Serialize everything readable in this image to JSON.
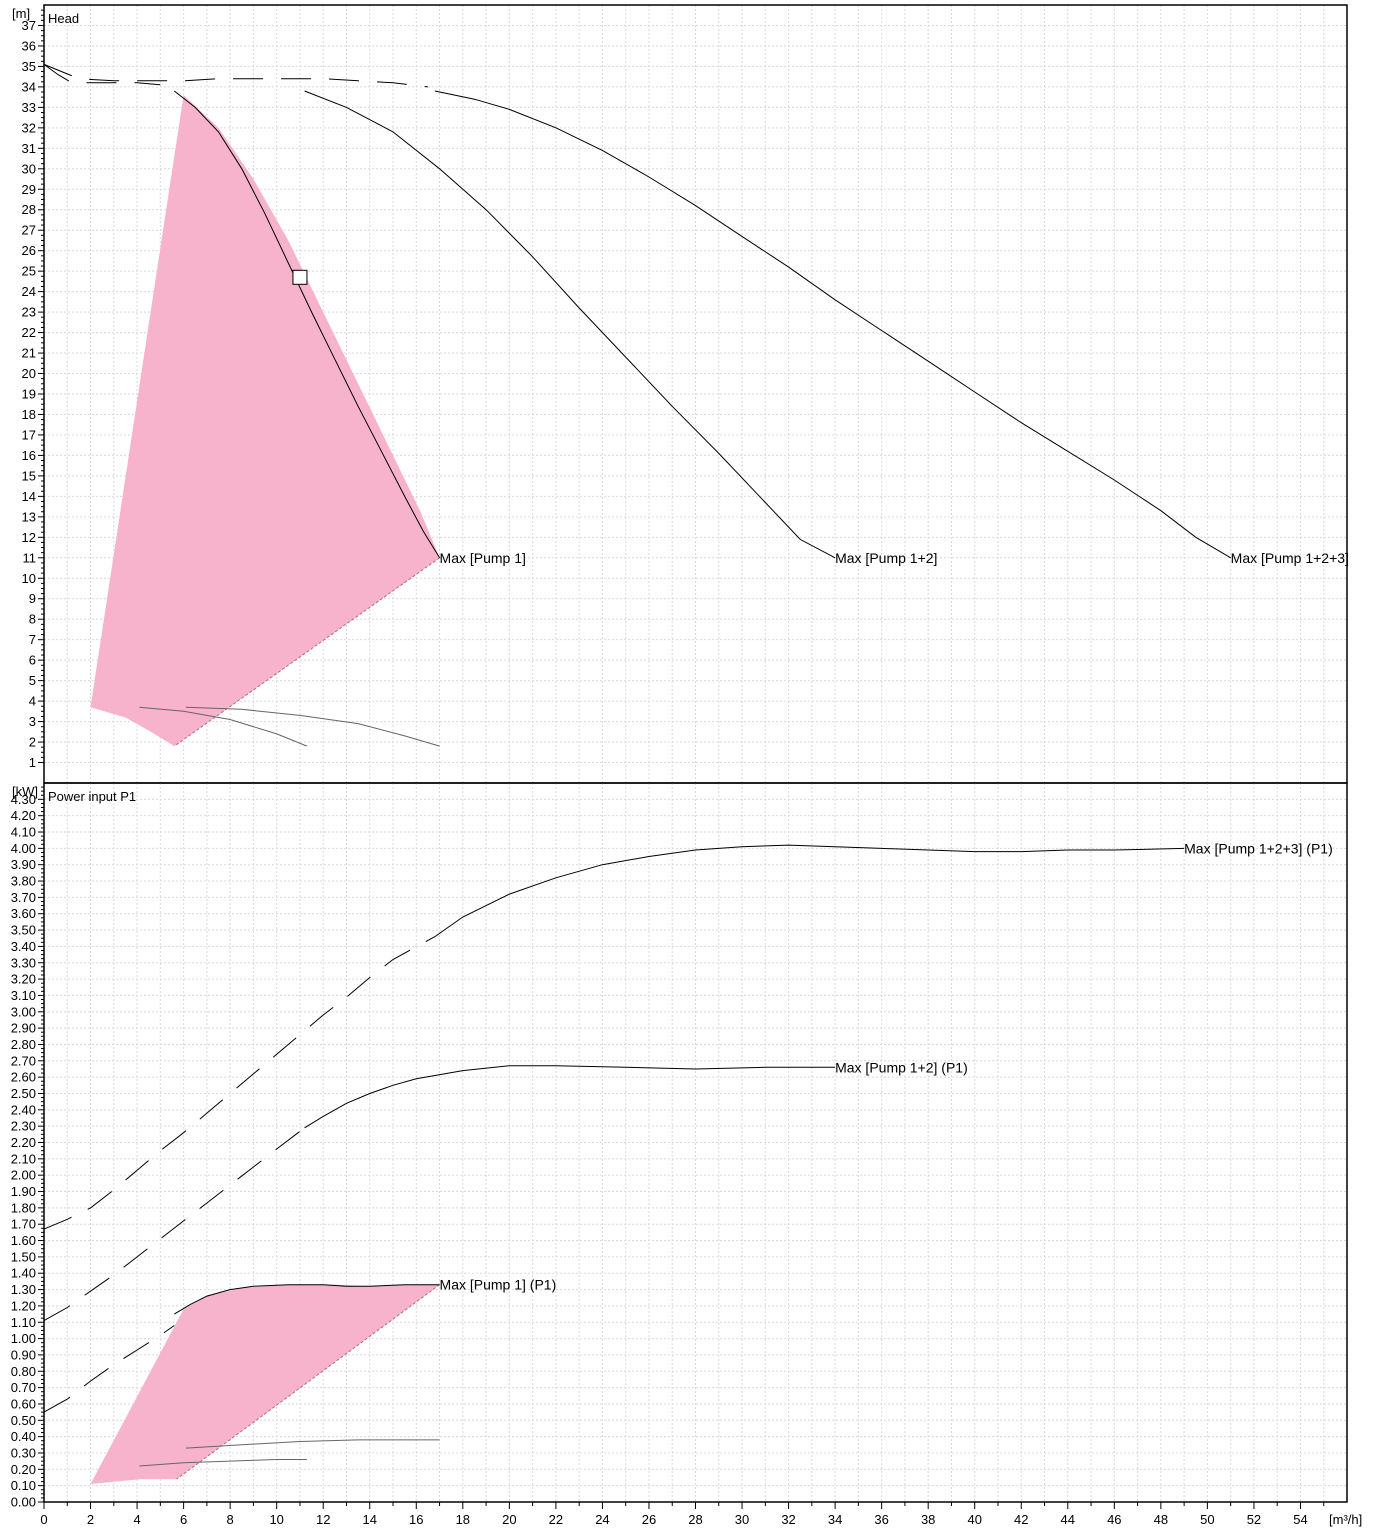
{
  "chart_data": [
    {
      "type": "line",
      "title": "Head",
      "ylabel": "[m]",
      "xlim": [
        0,
        56
      ],
      "ylim": [
        0,
        38
      ],
      "x_ticks": [
        0,
        2,
        4,
        6,
        8,
        10,
        12,
        14,
        16,
        18,
        20,
        22,
        24,
        26,
        28,
        30,
        32,
        34,
        36,
        38,
        40,
        42,
        44,
        46,
        48,
        50,
        52,
        54
      ],
      "y_ticks": [
        1,
        2,
        3,
        4,
        5,
        6,
        7,
        8,
        9,
        10,
        11,
        12,
        13,
        14,
        15,
        16,
        17,
        18,
        19,
        20,
        21,
        22,
        23,
        24,
        25,
        26,
        27,
        28,
        29,
        30,
        31,
        32,
        33,
        34,
        35,
        36,
        37
      ],
      "grid": true,
      "operating_area_color": "#f7b3cc",
      "operating_area": [
        [
          6.0,
          33.6
        ],
        [
          7.5,
          32.0
        ],
        [
          9.0,
          29.5
        ],
        [
          10.5,
          26.5
        ],
        [
          12.0,
          23.0
        ],
        [
          13.5,
          19.5
        ],
        [
          15.0,
          16.0
        ],
        [
          16.2,
          13.2
        ],
        [
          17.0,
          11.0
        ],
        [
          5.6,
          1.8
        ],
        [
          4.6,
          2.5
        ],
        [
          3.5,
          3.2
        ],
        [
          2.0,
          3.7
        ]
      ],
      "operating_point": {
        "x": 11.0,
        "y": 24.7
      },
      "series": [
        {
          "name": "Max [Pump 1]",
          "label_at": [
            17.0,
            11.0
          ],
          "style": "solid",
          "points": [
            [
              5.6,
              33.8
            ],
            [
              6.5,
              33.0
            ],
            [
              7.5,
              31.8
            ],
            [
              8.5,
              30.0
            ],
            [
              9.5,
              27.8
            ],
            [
              10.5,
              25.4
            ],
            [
              11.5,
              23.0
            ],
            [
              12.5,
              20.7
            ],
            [
              13.5,
              18.4
            ],
            [
              14.5,
              16.2
            ],
            [
              15.5,
              14.0
            ],
            [
              16.3,
              12.3
            ],
            [
              17.0,
              11.0
            ]
          ]
        },
        {
          "name": "Max [Pump 1+2]",
          "label_at": [
            34.0,
            11.0
          ],
          "style": "solid",
          "points": [
            [
              11.2,
              33.8
            ],
            [
              13.0,
              33.0
            ],
            [
              15.0,
              31.8
            ],
            [
              17.0,
              30.0
            ],
            [
              19.0,
              28.0
            ],
            [
              21.0,
              25.7
            ],
            [
              23.0,
              23.2
            ],
            [
              25.0,
              20.8
            ],
            [
              27.0,
              18.4
            ],
            [
              29.0,
              16.1
            ],
            [
              31.0,
              13.7
            ],
            [
              32.5,
              11.9
            ],
            [
              34.0,
              11.0
            ]
          ]
        },
        {
          "name": "Max [Pump 1+2+3]",
          "label_at": [
            51.0,
            11.0
          ],
          "style": "solid",
          "points": [
            [
              16.8,
              33.8
            ],
            [
              18.5,
              33.4
            ],
            [
              20.0,
              32.9
            ],
            [
              22.0,
              32.0
            ],
            [
              24.0,
              30.9
            ],
            [
              26.0,
              29.6
            ],
            [
              28.0,
              28.2
            ],
            [
              30.0,
              26.7
            ],
            [
              32.0,
              25.2
            ],
            [
              34.0,
              23.6
            ],
            [
              36.0,
              22.1
            ],
            [
              38.0,
              20.6
            ],
            [
              40.0,
              19.1
            ],
            [
              42.0,
              17.6
            ],
            [
              44.0,
              16.2
            ],
            [
              46.0,
              14.8
            ],
            [
              48.0,
              13.3
            ],
            [
              49.5,
              12.0
            ],
            [
              51.0,
              11.0
            ]
          ]
        },
        {
          "name": "",
          "style": "dash",
          "points": [
            [
              0,
              35.1
            ],
            [
              1.5,
              34.4
            ],
            [
              3.0,
              34.3
            ],
            [
              4.5,
              34.3
            ],
            [
              6.0,
              34.3
            ],
            [
              7.5,
              34.4
            ],
            [
              9.0,
              34.4
            ],
            [
              10.5,
              34.4
            ],
            [
              12.0,
              34.4
            ],
            [
              13.5,
              34.3
            ],
            [
              15.0,
              34.2
            ],
            [
              16.5,
              34.0
            ]
          ]
        },
        {
          "name": "",
          "style": "dash",
          "points": [
            [
              0,
              35.1
            ],
            [
              0.6,
              34.6
            ],
            [
              1.2,
              34.2
            ],
            [
              2.0,
              34.2
            ],
            [
              3.0,
              34.2
            ],
            [
              4.0,
              34.2
            ],
            [
              5.0,
              34.1
            ]
          ]
        },
        {
          "name": "",
          "style": "min",
          "points": [
            [
              4.1,
              3.7
            ],
            [
              6.0,
              3.5
            ],
            [
              8.0,
              3.1
            ],
            [
              10.0,
              2.4
            ],
            [
              11.3,
              1.8
            ]
          ]
        },
        {
          "name": "",
          "style": "min",
          "points": [
            [
              6.1,
              3.7
            ],
            [
              8.5,
              3.6
            ],
            [
              11.0,
              3.3
            ],
            [
              13.5,
              2.9
            ],
            [
              15.5,
              2.3
            ],
            [
              17.0,
              1.8
            ]
          ]
        }
      ],
      "labels": [
        "Max [Pump 1]",
        "Max [Pump 1+2]",
        "Max [Pump 1+2+3]"
      ]
    },
    {
      "type": "line",
      "title": "Power input P1",
      "ylabel": "[kW]",
      "xlabel": "[m³/h]",
      "xlim": [
        0,
        56
      ],
      "ylim": [
        0,
        4.4
      ],
      "x_ticks": [
        0,
        2,
        4,
        6,
        8,
        10,
        12,
        14,
        16,
        18,
        20,
        22,
        24,
        26,
        28,
        30,
        32,
        34,
        36,
        38,
        40,
        42,
        44,
        46,
        48,
        50,
        52,
        54
      ],
      "y_ticks": [
        "0.00",
        "0.10",
        "0.20",
        "0.30",
        "0.40",
        "0.50",
        "0.60",
        "0.70",
        "0.80",
        "0.90",
        "1.00",
        "1.10",
        "1.20",
        "1.30",
        "1.40",
        "1.50",
        "1.60",
        "1.70",
        "1.80",
        "1.90",
        "2.00",
        "2.10",
        "2.20",
        "2.30",
        "2.40",
        "2.50",
        "2.60",
        "2.70",
        "2.80",
        "2.90",
        "3.00",
        "3.10",
        "3.20",
        "3.30",
        "3.40",
        "3.50",
        "3.60",
        "3.70",
        "3.80",
        "3.90",
        "4.00",
        "4.10",
        "4.20",
        "4.30"
      ],
      "grid": true,
      "operating_area_color": "#f7b3cc",
      "operating_area": [
        [
          6.0,
          1.18
        ],
        [
          7.0,
          1.26
        ],
        [
          8.5,
          1.31
        ],
        [
          10.5,
          1.33
        ],
        [
          12.5,
          1.33
        ],
        [
          14.0,
          1.32
        ],
        [
          15.5,
          1.33
        ],
        [
          17.0,
          1.33
        ],
        [
          5.7,
          0.14
        ],
        [
          4.2,
          0.14
        ],
        [
          2.0,
          0.11
        ]
      ],
      "series": [
        {
          "name": "Max [Pump 1] (P1)",
          "label_at": [
            17.0,
            1.33
          ],
          "style": "solid",
          "points": [
            [
              5.6,
              1.15
            ],
            [
              6.3,
              1.21
            ],
            [
              7.0,
              1.26
            ],
            [
              8.0,
              1.3
            ],
            [
              9.0,
              1.32
            ],
            [
              10.5,
              1.33
            ],
            [
              12.0,
              1.33
            ],
            [
              13.0,
              1.32
            ],
            [
              14.0,
              1.32
            ],
            [
              15.5,
              1.33
            ],
            [
              17.0,
              1.33
            ]
          ]
        },
        {
          "name": "Max [Pump 1+2] (P1)",
          "label_at": [
            34.0,
            2.66
          ],
          "style": "solid",
          "points": [
            [
              11.2,
              2.29
            ],
            [
              12.0,
              2.36
            ],
            [
              13.0,
              2.44
            ],
            [
              14.0,
              2.5
            ],
            [
              15.0,
              2.55
            ],
            [
              16.0,
              2.59
            ],
            [
              18.0,
              2.64
            ],
            [
              20.0,
              2.67
            ],
            [
              22.0,
              2.67
            ],
            [
              25.0,
              2.66
            ],
            [
              28.0,
              2.65
            ],
            [
              31.0,
              2.66
            ],
            [
              34.0,
              2.66
            ]
          ]
        },
        {
          "name": "Max [Pump 1+2+3] (P1)",
          "label_at": [
            49.0,
            4.0
          ],
          "style": "solid",
          "points": [
            [
              16.8,
              3.46
            ],
            [
              18.0,
              3.58
            ],
            [
              20.0,
              3.72
            ],
            [
              22.0,
              3.82
            ],
            [
              24.0,
              3.9
            ],
            [
              26.0,
              3.95
            ],
            [
              28.0,
              3.99
            ],
            [
              30.0,
              4.01
            ],
            [
              32.0,
              4.02
            ],
            [
              34.0,
              4.01
            ],
            [
              36.0,
              4.0
            ],
            [
              38.0,
              3.99
            ],
            [
              40.0,
              3.98
            ],
            [
              42.0,
              3.98
            ],
            [
              44.0,
              3.99
            ],
            [
              46.0,
              3.99
            ],
            [
              49.0,
              4.0
            ]
          ]
        },
        {
          "name": "",
          "style": "dash",
          "points": [
            [
              0,
              0.55
            ],
            [
              1.0,
              0.63
            ],
            [
              2.0,
              0.74
            ],
            [
              3.0,
              0.84
            ],
            [
              4.0,
              0.93
            ],
            [
              5.0,
              1.02
            ],
            [
              5.6,
              1.08
            ]
          ]
        },
        {
          "name": "",
          "style": "dash",
          "points": [
            [
              0,
              1.11
            ],
            [
              1.0,
              1.19
            ],
            [
              2.0,
              1.29
            ],
            [
              3.0,
              1.39
            ],
            [
              4.0,
              1.5
            ],
            [
              5.0,
              1.61
            ],
            [
              6.0,
              1.72
            ],
            [
              7.0,
              1.83
            ],
            [
              8.0,
              1.94
            ],
            [
              9.0,
              2.05
            ],
            [
              10.0,
              2.16
            ],
            [
              11.2,
              2.29
            ]
          ]
        },
        {
          "name": "",
          "style": "dash",
          "points": [
            [
              0,
              1.67
            ],
            [
              1.0,
              1.73
            ],
            [
              2.0,
              1.8
            ],
            [
              3.0,
              1.91
            ],
            [
              4.0,
              2.03
            ],
            [
              5.0,
              2.15
            ],
            [
              6.0,
              2.26
            ],
            [
              7.0,
              2.38
            ],
            [
              8.0,
              2.5
            ],
            [
              9.0,
              2.62
            ],
            [
              10.0,
              2.74
            ],
            [
              11.0,
              2.86
            ],
            [
              12.0,
              2.98
            ],
            [
              13.0,
              3.09
            ],
            [
              14.0,
              3.21
            ],
            [
              15.0,
              3.32
            ],
            [
              16.8,
              3.46
            ]
          ]
        },
        {
          "name": "",
          "style": "min",
          "points": [
            [
              4.1,
              0.22
            ],
            [
              6.0,
              0.24
            ],
            [
              8.0,
              0.25
            ],
            [
              10.0,
              0.26
            ],
            [
              11.3,
              0.26
            ]
          ]
        },
        {
          "name": "",
          "style": "min",
          "points": [
            [
              6.1,
              0.33
            ],
            [
              8.5,
              0.35
            ],
            [
              11.0,
              0.37
            ],
            [
              13.5,
              0.38
            ],
            [
              15.5,
              0.38
            ],
            [
              17.0,
              0.38
            ]
          ]
        }
      ],
      "labels": [
        "Max [Pump 1] (P1)",
        "Max [Pump 1+2] (P1)",
        "Max [Pump 1+2+3] (P1)"
      ]
    }
  ]
}
